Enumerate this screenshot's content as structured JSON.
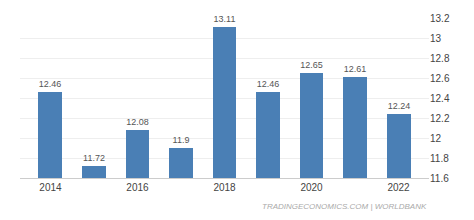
{
  "chart_data": {
    "type": "bar",
    "x": [
      2014,
      2015,
      2016,
      2017,
      2018,
      2019,
      2020,
      2021,
      2022
    ],
    "values": [
      12.46,
      11.72,
      12.08,
      11.9,
      13.11,
      12.46,
      12.65,
      12.61,
      12.24
    ],
    "color": "#4a7fb5",
    "xlim": [
      2013.3,
      2022.7
    ],
    "xticks": [
      2014,
      2016,
      2018,
      2020,
      2022
    ],
    "ylim": [
      11.6,
      13.2
    ],
    "yticks": [
      11.6,
      11.8,
      12,
      12.2,
      12.4,
      12.6,
      12.8,
      13,
      13.2
    ],
    "grid": true,
    "data_labels": true,
    "annotations": [
      "TRADINGECONOMICS.COM | WORLDBANK"
    ]
  }
}
